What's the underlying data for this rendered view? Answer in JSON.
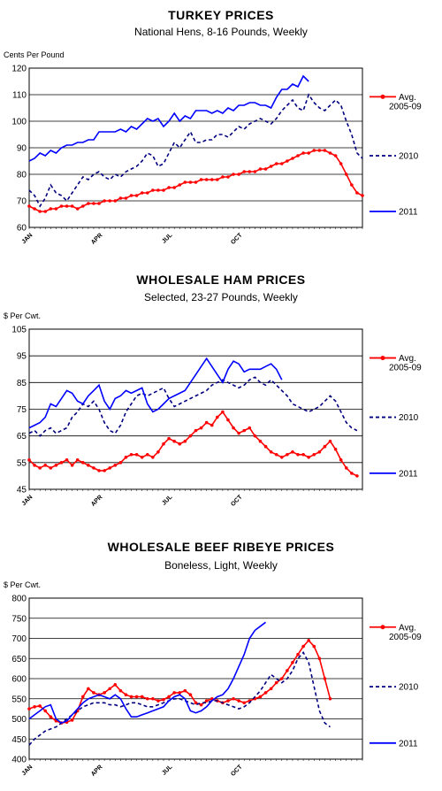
{
  "chart_data": [
    {
      "type": "line",
      "title": "TURKEY PRICES",
      "subtitle": "National Hens, 8-16 Pounds, Weekly",
      "ylabel": "Cents Per Pound",
      "ylim": [
        60,
        120
      ],
      "yticks": [
        60,
        70,
        80,
        90,
        100,
        110,
        120
      ],
      "x_tick_labels": [
        "JAN",
        "APR",
        "JUL",
        "OCT"
      ],
      "x_tick_weeks": [
        0,
        13,
        26,
        39
      ],
      "grid": true,
      "legend_position": "right",
      "series": [
        {
          "name": "Avg. 2005-09",
          "color": "#ff0000",
          "style": "solid-markers",
          "values": [
            68,
            67,
            66,
            66,
            67,
            67,
            68,
            68,
            68,
            67,
            68,
            69,
            69,
            69,
            70,
            70,
            70,
            71,
            71,
            72,
            72,
            73,
            73,
            74,
            74,
            74,
            75,
            75,
            76,
            77,
            77,
            77,
            78,
            78,
            78,
            78,
            79,
            79,
            80,
            80,
            81,
            81,
            81,
            82,
            82,
            83,
            84,
            84,
            85,
            86,
            87,
            88,
            88,
            89,
            89,
            89,
            88,
            87,
            84,
            80,
            76,
            73,
            72
          ]
        },
        {
          "name": "2010",
          "color": "#000080",
          "style": "dashed",
          "values": [
            74,
            72,
            68,
            71,
            76,
            73,
            72,
            70,
            73,
            76,
            79,
            78,
            80,
            81,
            79,
            78,
            80,
            79,
            81,
            82,
            83,
            85,
            88,
            87,
            83,
            84,
            88,
            92,
            90,
            93,
            96,
            92,
            92,
            93,
            93,
            95,
            95,
            94,
            96,
            98,
            97,
            99,
            100,
            101,
            100,
            99,
            101,
            104,
            106,
            108,
            105,
            104,
            110,
            107,
            105,
            104,
            106,
            108,
            106,
            100,
            95,
            88,
            86
          ]
        },
        {
          "name": "2011",
          "color": "#0000ff",
          "style": "solid",
          "values": [
            85,
            86,
            88,
            87,
            89,
            88,
            90,
            91,
            91,
            92,
            92,
            93,
            93,
            96,
            96,
            96,
            96,
            97,
            96,
            98,
            97,
            99,
            101,
            100,
            101,
            98,
            100,
            103,
            100,
            102,
            101,
            104,
            104,
            104,
            103,
            104,
            103,
            105,
            104,
            106,
            106,
            107,
            107,
            106,
            106,
            105,
            109,
            112,
            112,
            114,
            113,
            117,
            115
          ]
        }
      ]
    },
    {
      "type": "line",
      "title": "WHOLESALE HAM PRICES",
      "subtitle": "Selected, 23-27 Pounds, Weekly",
      "ylabel": "$ Per Cwt.",
      "ylim": [
        45,
        105
      ],
      "yticks": [
        45,
        55,
        65,
        75,
        85,
        95,
        105
      ],
      "x_tick_labels": [
        "JAN",
        "APR",
        "JUL",
        "OCT"
      ],
      "x_tick_weeks": [
        0,
        13,
        26,
        39
      ],
      "grid": true,
      "legend_position": "right",
      "series": [
        {
          "name": "Avg. 2005-09",
          "color": "#ff0000",
          "style": "solid-markers",
          "values": [
            56,
            54,
            53,
            54,
            53,
            54,
            55,
            56,
            54,
            56,
            55,
            54,
            53,
            52,
            52,
            53,
            54,
            55,
            57,
            58,
            58,
            57,
            58,
            57,
            59,
            62,
            64,
            63,
            62,
            63,
            65,
            67,
            68,
            70,
            69,
            72,
            74,
            71,
            68,
            66,
            67,
            68,
            65,
            63,
            61,
            59,
            58,
            57,
            58,
            59,
            58,
            58,
            57,
            58,
            59,
            61,
            63,
            60,
            56,
            53,
            51,
            50
          ]
        },
        {
          "name": "2010",
          "color": "#000080",
          "style": "dashed",
          "values": [
            66,
            67,
            65,
            67,
            68,
            66,
            67,
            68,
            72,
            74,
            77,
            76,
            78,
            75,
            70,
            67,
            66,
            69,
            74,
            77,
            80,
            81,
            80,
            81,
            82,
            83,
            79,
            76,
            77,
            78,
            79,
            80,
            81,
            82,
            84,
            85,
            86,
            85,
            84,
            83,
            84,
            86,
            87,
            85,
            84,
            86,
            84,
            82,
            80,
            77,
            76,
            75,
            74,
            75,
            76,
            78,
            80,
            78,
            74,
            70,
            68,
            67
          ]
        },
        {
          "name": "2011",
          "color": "#0000ff",
          "style": "solid",
          "values": [
            68,
            69,
            70,
            72,
            77,
            76,
            79,
            82,
            81,
            78,
            77,
            80,
            82,
            84,
            78,
            75,
            79,
            80,
            82,
            81,
            82,
            83,
            77,
            74,
            75,
            77,
            79,
            80,
            81,
            82,
            85,
            88,
            91,
            94,
            91,
            88,
            85,
            90,
            93,
            92,
            89,
            90,
            90,
            90,
            91,
            92,
            90,
            86
          ]
        }
      ]
    },
    {
      "type": "line",
      "title": "WHOLESALE BEEF RIBEYE PRICES",
      "subtitle": "Boneless, Light, Weekly",
      "ylabel": "$ Per Cwt.",
      "ylim": [
        400,
        800
      ],
      "yticks": [
        400,
        450,
        500,
        550,
        600,
        650,
        700,
        750,
        800
      ],
      "x_tick_labels": [
        "JAN",
        "APR",
        "JUL",
        "OCT"
      ],
      "x_tick_weeks": [
        0,
        13,
        26,
        39
      ],
      "grid": true,
      "legend_position": "right",
      "series": [
        {
          "name": "Avg. 2005-09",
          "color": "#ff0000",
          "style": "solid-markers",
          "values": [
            525,
            530,
            532,
            520,
            505,
            495,
            490,
            492,
            497,
            520,
            555,
            575,
            565,
            560,
            565,
            575,
            585,
            570,
            560,
            555,
            555,
            555,
            550,
            550,
            545,
            548,
            555,
            565,
            565,
            570,
            560,
            540,
            535,
            545,
            550,
            545,
            540,
            545,
            550,
            545,
            540,
            545,
            550,
            555,
            565,
            575,
            590,
            600,
            620,
            640,
            660,
            680,
            695,
            680,
            650,
            600,
            550
          ]
        },
        {
          "name": "2010",
          "color": "#000080",
          "style": "dashed",
          "values": [
            435,
            450,
            460,
            470,
            475,
            480,
            490,
            500,
            510,
            520,
            530,
            535,
            540,
            540,
            540,
            535,
            535,
            530,
            535,
            540,
            540,
            535,
            530,
            530,
            535,
            540,
            545,
            550,
            550,
            545,
            540,
            535,
            540,
            540,
            545,
            545,
            540,
            535,
            530,
            525,
            530,
            540,
            555,
            570,
            590,
            610,
            600,
            590,
            600,
            620,
            650,
            665,
            640,
            580,
            520,
            490,
            480
          ]
        },
        {
          "name": "2011",
          "color": "#0000ff",
          "style": "solid",
          "values": [
            500,
            510,
            520,
            530,
            535,
            500,
            490,
            495,
            510,
            525,
            540,
            550,
            555,
            560,
            555,
            550,
            560,
            550,
            525,
            505,
            505,
            510,
            515,
            520,
            525,
            530,
            545,
            555,
            560,
            550,
            520,
            515,
            520,
            530,
            545,
            555,
            560,
            575,
            600,
            630,
            660,
            700,
            720,
            730,
            740
          ]
        }
      ]
    }
  ]
}
